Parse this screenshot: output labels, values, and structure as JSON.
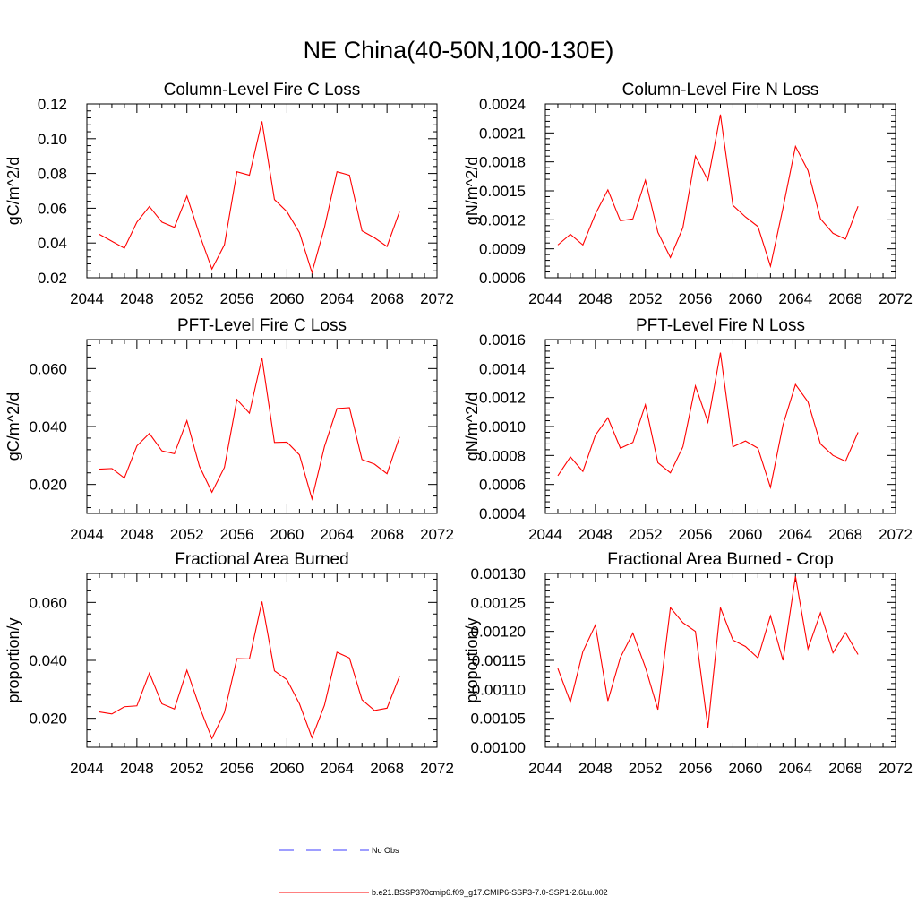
{
  "figure": {
    "title": "NE China(40-50N,100-130E)"
  },
  "legend": {
    "placement": "bottom-center",
    "entries": [
      {
        "label": "No Obs",
        "color": "#3c3cff",
        "style": "dashed"
      },
      {
        "label": "b.e21.BSSP370cmip6.f09_g17.CMIP6-SSP3-7.0-SSP1-2.6Lu.002",
        "color": "#ff0000",
        "style": "solid"
      }
    ]
  },
  "chart_data": [
    {
      "type": "line",
      "title": "Column-Level Fire C Loss",
      "xlabel": "",
      "ylabel": "gC/m^2/d",
      "xlim": [
        2044,
        2072
      ],
      "ylim": [
        0.02,
        0.12
      ],
      "xticks": [
        "2044",
        "2048",
        "2052",
        "2056",
        "2060",
        "2064",
        "2068",
        "2072"
      ],
      "yticks": [
        "0.02",
        "0.04",
        "0.06",
        "0.08",
        "0.10",
        "0.12"
      ],
      "ytick_values": [
        0.02,
        0.04,
        0.06,
        0.08,
        0.1,
        0.12
      ],
      "x": [
        2045,
        2046,
        2047,
        2048,
        2049,
        2050,
        2051,
        2052,
        2053,
        2054,
        2055,
        2056,
        2057,
        2058,
        2059,
        2060,
        2061,
        2062,
        2063,
        2064,
        2065,
        2066,
        2067,
        2068,
        2069
      ],
      "series": [
        {
          "color": "#ff0000",
          "values": [
            0.045,
            0.041,
            0.037,
            0.052,
            0.061,
            0.052,
            0.049,
            0.067,
            0.045,
            0.025,
            0.039,
            0.081,
            0.079,
            0.11,
            0.065,
            0.058,
            0.046,
            0.023,
            0.049,
            0.081,
            0.079,
            0.047,
            0.043,
            0.038,
            0.058
          ]
        }
      ],
      "grid": false
    },
    {
      "type": "line",
      "title": "Column-Level Fire N Loss",
      "xlabel": "",
      "ylabel": "gN/m^2/d",
      "xlim": [
        2044,
        2072
      ],
      "ylim": [
        0.0006,
        0.0024
      ],
      "xticks": [
        "2044",
        "2048",
        "2052",
        "2056",
        "2060",
        "2064",
        "2068",
        "2072"
      ],
      "yticks": [
        "0.0006",
        "0.0009",
        "0.0012",
        "0.0015",
        "0.0018",
        "0.0021",
        "0.0024"
      ],
      "ytick_values": [
        0.0006,
        0.0009,
        0.0012,
        0.0015,
        0.0018,
        0.0021,
        0.0024
      ],
      "x": [
        2045,
        2046,
        2047,
        2048,
        2049,
        2050,
        2051,
        2052,
        2053,
        2054,
        2055,
        2056,
        2057,
        2058,
        2059,
        2060,
        2061,
        2062,
        2063,
        2064,
        2065,
        2066,
        2067,
        2068,
        2069
      ],
      "series": [
        {
          "color": "#ff0000",
          "values": [
            0.00094,
            0.00105,
            0.00094,
            0.00126,
            0.00151,
            0.00119,
            0.00121,
            0.00161,
            0.00107,
            0.00081,
            0.00112,
            0.00186,
            0.00161,
            0.00229,
            0.00135,
            0.00123,
            0.00113,
            0.00072,
            0.00132,
            0.00196,
            0.00171,
            0.00121,
            0.00106,
            0.001,
            0.00134
          ]
        }
      ],
      "grid": false
    },
    {
      "type": "line",
      "title": "PFT-Level Fire C Loss",
      "xlabel": "",
      "ylabel": "gC/m^2/d",
      "xlim": [
        2044,
        2072
      ],
      "ylim": [
        0.01,
        0.07
      ],
      "xticks": [
        "2044",
        "2048",
        "2052",
        "2056",
        "2060",
        "2064",
        "2068",
        "2072"
      ],
      "yticks": [
        "0.020",
        "0.040",
        "0.060"
      ],
      "ytick_values": [
        0.02,
        0.04,
        0.06
      ],
      "x": [
        2045,
        2046,
        2047,
        2048,
        2049,
        2050,
        2051,
        2052,
        2053,
        2054,
        2055,
        2056,
        2057,
        2058,
        2059,
        2060,
        2061,
        2062,
        2063,
        2064,
        2065,
        2066,
        2067,
        2068,
        2069
      ],
      "series": [
        {
          "color": "#ff0000",
          "values": [
            0.0253,
            0.0255,
            0.0222,
            0.0333,
            0.0376,
            0.0316,
            0.0306,
            0.042,
            0.0263,
            0.0173,
            0.0259,
            0.0493,
            0.0446,
            0.0637,
            0.0345,
            0.0346,
            0.0302,
            0.015,
            0.0331,
            0.0462,
            0.0465,
            0.0286,
            0.027,
            0.0237,
            0.0364
          ]
        }
      ],
      "grid": false
    },
    {
      "type": "line",
      "title": "PFT-Level Fire N Loss",
      "xlabel": "",
      "ylabel": "gN/m^2/d",
      "xlim": [
        2044,
        2072
      ],
      "ylim": [
        0.0004,
        0.0016
      ],
      "xticks": [
        "2044",
        "2048",
        "2052",
        "2056",
        "2060",
        "2064",
        "2068",
        "2072"
      ],
      "yticks": [
        "0.0004",
        "0.0006",
        "0.0008",
        "0.0010",
        "0.0012",
        "0.0014",
        "0.0016"
      ],
      "ytick_values": [
        0.0004,
        0.0006,
        0.0008,
        0.001,
        0.0012,
        0.0014,
        0.0016
      ],
      "x": [
        2045,
        2046,
        2047,
        2048,
        2049,
        2050,
        2051,
        2052,
        2053,
        2054,
        2055,
        2056,
        2057,
        2058,
        2059,
        2060,
        2061,
        2062,
        2063,
        2064,
        2065,
        2066,
        2067,
        2068,
        2069
      ],
      "series": [
        {
          "color": "#ff0000",
          "values": [
            0.00066,
            0.00079,
            0.00069,
            0.00094,
            0.00106,
            0.00085,
            0.00089,
            0.00115,
            0.00075,
            0.00068,
            0.00086,
            0.00128,
            0.00103,
            0.00151,
            0.00086,
            0.0009,
            0.00085,
            0.00058,
            0.00101,
            0.00129,
            0.00117,
            0.00088,
            0.0008,
            0.00076,
            0.00096
          ]
        }
      ],
      "grid": false
    },
    {
      "type": "line",
      "title": "Fractional Area Burned",
      "xlabel": "",
      "ylabel": "proportion/y",
      "xlim": [
        2044,
        2072
      ],
      "ylim": [
        0.01,
        0.07
      ],
      "xticks": [
        "2044",
        "2048",
        "2052",
        "2056",
        "2060",
        "2064",
        "2068",
        "2072"
      ],
      "yticks": [
        "0.020",
        "0.040",
        "0.060"
      ],
      "ytick_values": [
        0.02,
        0.04,
        0.06
      ],
      "x": [
        2045,
        2046,
        2047,
        2048,
        2049,
        2050,
        2051,
        2052,
        2053,
        2054,
        2055,
        2056,
        2057,
        2058,
        2059,
        2060,
        2061,
        2062,
        2063,
        2064,
        2065,
        2066,
        2067,
        2068,
        2069
      ],
      "series": [
        {
          "color": "#ff0000",
          "values": [
            0.0222,
            0.0215,
            0.024,
            0.0243,
            0.0356,
            0.025,
            0.0232,
            0.0366,
            0.024,
            0.013,
            0.022,
            0.0406,
            0.0405,
            0.0603,
            0.0364,
            0.0333,
            0.025,
            0.0133,
            0.0245,
            0.0428,
            0.0408,
            0.0264,
            0.0227,
            0.0235,
            0.0345
          ]
        }
      ],
      "grid": false
    },
    {
      "type": "line",
      "title": "Fractional Area Burned - Crop",
      "xlabel": "",
      "ylabel": "proportion/y",
      "xlim": [
        2044,
        2072
      ],
      "ylim": [
        0.001,
        0.0013
      ],
      "xticks": [
        "2044",
        "2048",
        "2052",
        "2056",
        "2060",
        "2064",
        "2068",
        "2072"
      ],
      "yticks": [
        "0.00100",
        "0.00105",
        "0.00110",
        "0.00115",
        "0.00120",
        "0.00125",
        "0.00130"
      ],
      "ytick_values": [
        0.001,
        0.00105,
        0.0011,
        0.00115,
        0.0012,
        0.00125,
        0.0013
      ],
      "x": [
        2045,
        2046,
        2047,
        2048,
        2049,
        2050,
        2051,
        2052,
        2053,
        2054,
        2055,
        2056,
        2057,
        2058,
        2059,
        2060,
        2061,
        2062,
        2063,
        2064,
        2065,
        2066,
        2067,
        2068,
        2069
      ],
      "series": [
        {
          "color": "#ff0000",
          "values": [
            0.001136,
            0.001078,
            0.001165,
            0.001211,
            0.00108,
            0.001155,
            0.001197,
            0.001138,
            0.001065,
            0.001241,
            0.001215,
            0.0012,
            0.001034,
            0.001241,
            0.001185,
            0.001174,
            0.001154,
            0.001227,
            0.00115,
            0.001295,
            0.00117,
            0.001232,
            0.001163,
            0.001198,
            0.00116
          ]
        }
      ],
      "grid": false
    }
  ]
}
